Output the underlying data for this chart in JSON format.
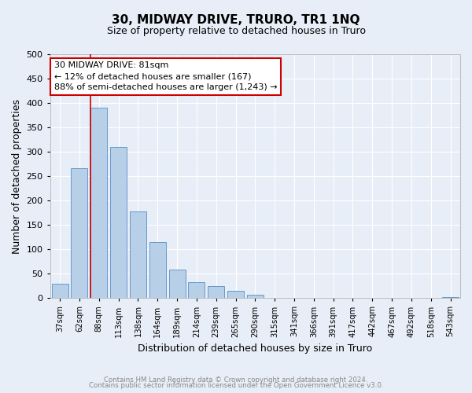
{
  "title": "30, MIDWAY DRIVE, TRURO, TR1 1NQ",
  "subtitle": "Size of property relative to detached houses in Truro",
  "xlabel": "Distribution of detached houses by size in Truro",
  "ylabel": "Number of detached properties",
  "bar_labels": [
    "37sqm",
    "62sqm",
    "88sqm",
    "113sqm",
    "138sqm",
    "164sqm",
    "189sqm",
    "214sqm",
    "239sqm",
    "265sqm",
    "290sqm",
    "315sqm",
    "341sqm",
    "366sqm",
    "391sqm",
    "417sqm",
    "442sqm",
    "467sqm",
    "492sqm",
    "518sqm",
    "543sqm"
  ],
  "bar_values": [
    30,
    267,
    390,
    310,
    178,
    115,
    58,
    32,
    25,
    15,
    7,
    0,
    0,
    0,
    0,
    0,
    0,
    0,
    0,
    0,
    2
  ],
  "bar_color": "#b8cfe8",
  "bar_edge_color": "#6699cc",
  "vline_color": "#cc0000",
  "annotation_title": "30 MIDWAY DRIVE: 81sqm",
  "annotation_line1": "← 12% of detached houses are smaller (167)",
  "annotation_line2": "88% of semi-detached houses are larger (1,243) →",
  "annotation_box_facecolor": "#ffffff",
  "annotation_box_edgecolor": "#cc0000",
  "ylim": [
    0,
    500
  ],
  "yticks": [
    0,
    50,
    100,
    150,
    200,
    250,
    300,
    350,
    400,
    450,
    500
  ],
  "footer1": "Contains HM Land Registry data © Crown copyright and database right 2024.",
  "footer2": "Contains public sector information licensed under the Open Government Licence v3.0.",
  "bg_color": "#e8eef7",
  "plot_bg_color": "#e8eef7",
  "grid_color": "#ffffff",
  "footer_color": "#888888"
}
